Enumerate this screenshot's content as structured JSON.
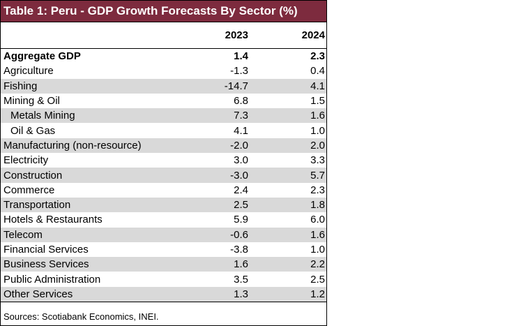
{
  "table": {
    "title": "Table 1: Peru - GDP Growth Forecasts By Sector (%)",
    "header": [
      "2023",
      "2024"
    ],
    "rows": [
      [
        "Aggregate GDP",
        "1.4",
        "2.3"
      ],
      [
        "Agriculture",
        "-1.3",
        "0.4"
      ],
      [
        "Fishing",
        "-14.7",
        "4.1"
      ],
      [
        "Mining & Oil",
        "6.8",
        "1.5"
      ],
      [
        "Metals Mining",
        "7.3",
        "1.6"
      ],
      [
        "Oil & Gas",
        "4.1",
        "1.0"
      ],
      [
        "Manufacturing (non-resource)",
        "-2.0",
        "2.0"
      ],
      [
        "Electricity",
        "3.0",
        "3.3"
      ],
      [
        "Construction",
        "-3.0",
        "5.7"
      ],
      [
        "Commerce",
        "2.4",
        "2.3"
      ],
      [
        "Transportation",
        "2.5",
        "1.8"
      ],
      [
        "Hotels & Restaurants",
        "5.9",
        "6.0"
      ],
      [
        "Telecom",
        "-0.6",
        "1.6"
      ],
      [
        "Financial Services",
        "-3.8",
        "1.0"
      ],
      [
        "Business Services",
        "1.6",
        "2.2"
      ],
      [
        "Public Administration",
        "3.5",
        "2.5"
      ],
      [
        "Other Services",
        "1.3",
        "1.2"
      ]
    ],
    "source": "Sources: Scotiabank Economics, INEI."
  }
}
